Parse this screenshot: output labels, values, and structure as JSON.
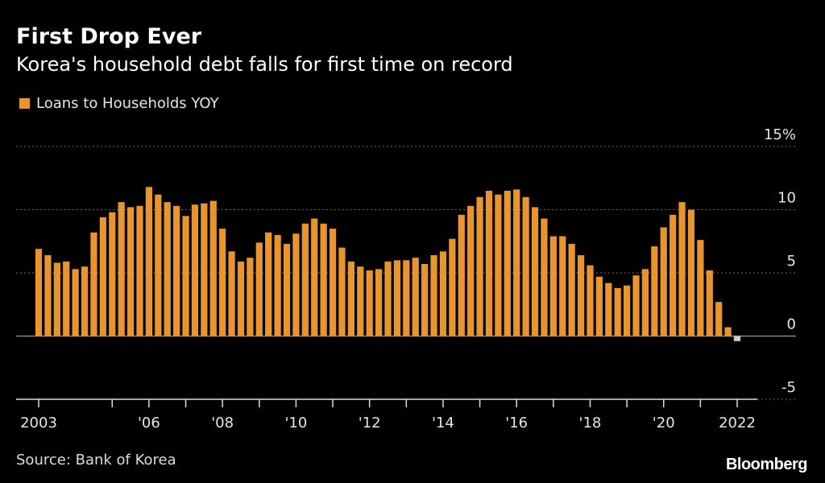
{
  "header": {
    "title": "First Drop Ever",
    "subtitle": "Korea's household debt falls for first time on record"
  },
  "footer": {
    "source": "Source: Bank of Korea",
    "logo": "Bloomberg"
  },
  "colors": {
    "bar": "#e8952f",
    "negative_bar": "#cfcfcf",
    "grid": "#6a6a6a",
    "zero_line": "#8a8a8a",
    "axis": "#dddddd",
    "text": "#ffffff"
  },
  "chart_data": {
    "type": "bar",
    "title": "First Drop Ever",
    "subtitle": "Korea's household debt falls for first time on record",
    "legend": [
      "Loans to Households YOY"
    ],
    "xlabel": "",
    "ylabel": "",
    "ylim": [
      -5,
      15
    ],
    "y_ticks": [
      {
        "value": 15,
        "label": "15%"
      },
      {
        "value": 10,
        "label": "10"
      },
      {
        "value": 5,
        "label": "5"
      },
      {
        "value": 0,
        "label": "0"
      },
      {
        "value": -5,
        "label": "-5"
      }
    ],
    "x_start": 2003,
    "x_end": 2022,
    "x_ticks": [
      {
        "year": 2003,
        "label": "2003"
      },
      {
        "year": 2005,
        "label": ""
      },
      {
        "year": 2006,
        "label": "'06"
      },
      {
        "year": 2007,
        "label": ""
      },
      {
        "year": 2008,
        "label": "'08"
      },
      {
        "year": 2009,
        "label": ""
      },
      {
        "year": 2010,
        "label": "'10"
      },
      {
        "year": 2011,
        "label": ""
      },
      {
        "year": 2012,
        "label": "'12"
      },
      {
        "year": 2013,
        "label": ""
      },
      {
        "year": 2014,
        "label": "'14"
      },
      {
        "year": 2015,
        "label": ""
      },
      {
        "year": 2016,
        "label": "'16"
      },
      {
        "year": 2017,
        "label": ""
      },
      {
        "year": 2018,
        "label": "'18"
      },
      {
        "year": 2019,
        "label": ""
      },
      {
        "year": 2020,
        "label": "'20"
      },
      {
        "year": 2021,
        "label": ""
      },
      {
        "year": 2022,
        "label": "2022"
      }
    ],
    "series": [
      {
        "name": "Loans to Households YOY",
        "frequency": "quarterly",
        "start": "2003 Q1",
        "values": [
          6.9,
          6.4,
          5.8,
          5.9,
          5.3,
          5.5,
          8.2,
          9.4,
          9.8,
          10.6,
          10.2,
          10.3,
          11.8,
          11.2,
          10.6,
          10.3,
          9.5,
          10.4,
          10.5,
          10.7,
          8.5,
          6.7,
          5.9,
          6.2,
          7.4,
          8.2,
          8.0,
          7.3,
          8.1,
          8.9,
          9.3,
          8.9,
          8.5,
          7.0,
          5.9,
          5.5,
          5.2,
          5.3,
          5.9,
          6.0,
          6.0,
          6.2,
          5.7,
          6.4,
          6.7,
          7.7,
          9.6,
          10.3,
          11.0,
          11.5,
          11.2,
          11.5,
          11.6,
          11.0,
          10.2,
          9.3,
          7.9,
          7.9,
          7.3,
          6.4,
          5.6,
          4.7,
          4.2,
          3.8,
          4.0,
          4.8,
          5.3,
          7.1,
          8.6,
          9.6,
          10.6,
          10.0,
          7.6,
          5.2,
          2.7,
          0.7,
          -0.4
        ]
      }
    ]
  }
}
